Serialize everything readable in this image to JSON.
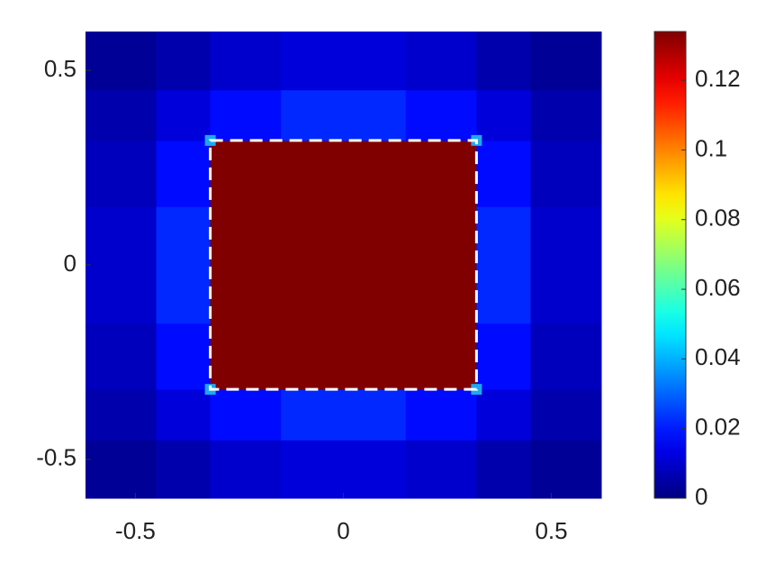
{
  "chart_data": {
    "type": "heatmap",
    "x_edges": [
      -0.62,
      -0.45,
      -0.32,
      -0.15,
      0.15,
      0.32,
      0.45,
      0.62
    ],
    "y_edges": [
      -0.6,
      -0.45,
      -0.32,
      -0.15,
      0.15,
      0.32,
      0.45,
      0.6
    ],
    "values": [
      [
        0.003,
        0.006,
        0.01,
        0.012,
        0.01,
        0.006,
        0.003
      ],
      [
        0.006,
        0.012,
        0.018,
        0.022,
        0.018,
        0.012,
        0.006
      ],
      [
        0.008,
        0.018,
        0.134,
        0.134,
        0.134,
        0.018,
        0.008
      ],
      [
        0.01,
        0.022,
        0.134,
        0.134,
        0.134,
        0.022,
        0.01
      ],
      [
        0.008,
        0.018,
        0.134,
        0.134,
        0.134,
        0.018,
        0.008
      ],
      [
        0.006,
        0.012,
        0.018,
        0.022,
        0.018,
        0.012,
        0.006
      ],
      [
        0.003,
        0.006,
        0.01,
        0.012,
        0.01,
        0.006,
        0.003
      ]
    ],
    "outline": [
      -0.32,
      0.32,
      -0.32,
      0.32
    ],
    "xlim": [
      -0.62,
      0.62
    ],
    "ylim": [
      -0.6,
      0.6
    ],
    "xticks": [
      -0.5,
      0,
      0.5
    ],
    "yticks": [
      -0.5,
      0,
      0.5
    ],
    "colormap": "jet",
    "clim": [
      0,
      0.134
    ],
    "cticks": [
      0,
      0.02,
      0.04,
      0.06,
      0.08,
      0.1,
      0.12
    ]
  }
}
